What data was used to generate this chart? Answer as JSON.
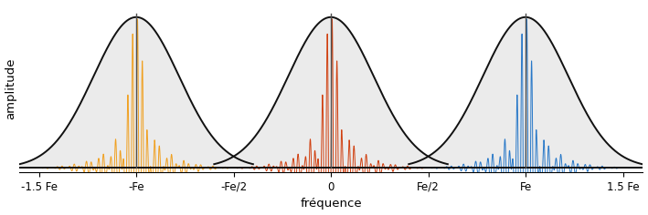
{
  "title": "",
  "xlabel": "fréquence",
  "ylabel": "amplitude",
  "xlim": [
    -1.6,
    1.6
  ],
  "ylim": [
    -0.03,
    1.08
  ],
  "xtick_positions": [
    -1.5,
    -1.0,
    -0.5,
    0.0,
    0.5,
    1.0,
    1.5
  ],
  "xtick_labels": [
    "-1.5 Fe",
    "-Fe",
    "-Fe/2",
    "0",
    "Fe/2",
    "Fe",
    "1.5 Fe"
  ],
  "centers": [
    -1.0,
    0.0,
    1.0
  ],
  "colors": [
    "#F0A020",
    "#D04010",
    "#2878C8"
  ],
  "envelope_color": "#111111",
  "fill_color": "#EBEBEB",
  "gaussian_sigma": 0.22,
  "sinc_freq": 14.0,
  "osc_freq": 80.0,
  "vertical_line_color": "#505050",
  "figsize": [
    7.09,
    2.36
  ],
  "dpi": 100
}
